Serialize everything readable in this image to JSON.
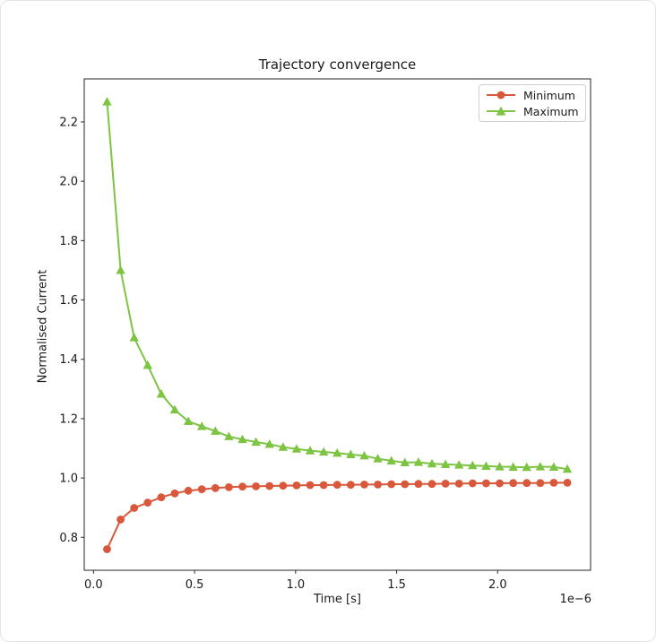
{
  "chart_data": {
    "type": "line",
    "title": "Trajectory convergence",
    "xlabel": "Time [s]",
    "ylabel": "Normalised Current",
    "x_offset_text": "1e−6",
    "grid": false,
    "legend_position": "upper right",
    "xlim": [
      -0.046,
      2.46
    ],
    "ylim": [
      0.689,
      2.345
    ],
    "xticks": {
      "values": [
        0.0,
        0.5,
        1.0,
        1.5,
        2.0
      ],
      "labels": [
        "0.0",
        "0.5",
        "1.0",
        "1.5",
        "2.0"
      ]
    },
    "yticks": {
      "values": [
        0.8,
        1.0,
        1.2,
        1.4,
        1.6,
        1.8,
        2.0,
        2.2
      ],
      "labels": [
        "0.8",
        "1.0",
        "1.2",
        "1.4",
        "1.6",
        "1.8",
        "2.0",
        "2.2"
      ]
    },
    "x": [
      0.067,
      0.134,
      0.201,
      0.268,
      0.335,
      0.402,
      0.469,
      0.536,
      0.603,
      0.67,
      0.737,
      0.804,
      0.871,
      0.938,
      1.005,
      1.072,
      1.139,
      1.206,
      1.273,
      1.34,
      1.407,
      1.474,
      1.541,
      1.608,
      1.675,
      1.742,
      1.809,
      1.876,
      1.943,
      2.01,
      2.077,
      2.144,
      2.211,
      2.278,
      2.345
    ],
    "series": [
      {
        "name": "Minimum",
        "color": "#d9573a",
        "marker": "circle",
        "values": [
          0.76,
          0.86,
          0.899,
          0.917,
          0.935,
          0.948,
          0.957,
          0.962,
          0.966,
          0.969,
          0.971,
          0.972,
          0.973,
          0.974,
          0.975,
          0.976,
          0.976,
          0.977,
          0.977,
          0.978,
          0.978,
          0.979,
          0.979,
          0.98,
          0.98,
          0.981,
          0.981,
          0.982,
          0.982,
          0.982,
          0.983,
          0.983,
          0.983,
          0.984,
          0.984
        ]
      },
      {
        "name": "Maximum",
        "color": "#7dc443",
        "marker": "triangle-up",
        "values": [
          2.268,
          1.7,
          1.473,
          1.38,
          1.283,
          1.23,
          1.191,
          1.174,
          1.158,
          1.14,
          1.13,
          1.121,
          1.114,
          1.104,
          1.098,
          1.092,
          1.088,
          1.084,
          1.079,
          1.075,
          1.065,
          1.058,
          1.052,
          1.053,
          1.048,
          1.046,
          1.044,
          1.042,
          1.04,
          1.038,
          1.037,
          1.036,
          1.038,
          1.037,
          1.03
        ]
      }
    ],
    "colors": {
      "text": "#1a1a1a",
      "spine": "#262626",
      "legend_border": "#cfcfcf",
      "background": "#ffffff",
      "page_border": "#e4e4e4"
    }
  }
}
